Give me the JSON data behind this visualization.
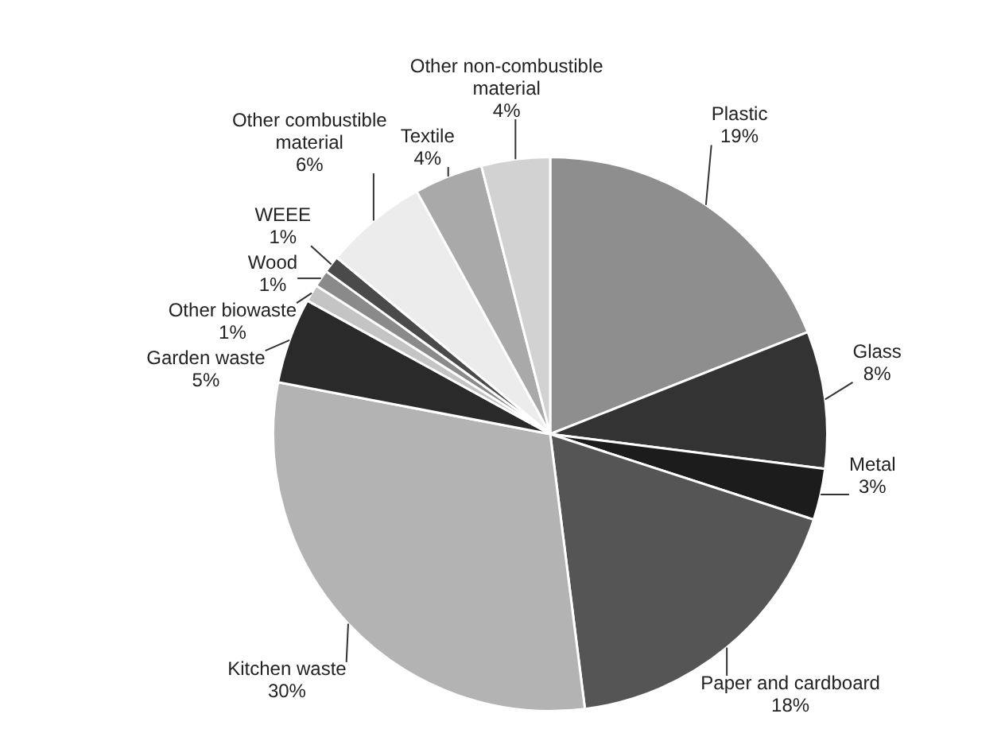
{
  "chart_data": {
    "type": "pie",
    "categories": [
      "Plastic",
      "Glass",
      "Metal",
      "Paper and cardboard",
      "Kitchen waste",
      "Garden waste",
      "Other biowaste",
      "Wood",
      "WEEE",
      "Other combustible material",
      "Textile",
      "Other non-combustible material"
    ],
    "values": [
      19,
      8,
      3,
      18,
      30,
      5,
      1,
      1,
      1,
      6,
      4,
      4
    ],
    "value_labels": [
      "19%",
      "8%",
      "3%",
      "18%",
      "30%",
      "5%",
      "1%",
      "1%",
      "1%",
      "6%",
      "4%",
      "4%"
    ],
    "colors": [
      "#8e8e8e",
      "#333333",
      "#1c1c1c",
      "#555555",
      "#b3b3b3",
      "#2a2a2a",
      "#c4c4c4",
      "#8a8a8a",
      "#4a4a4a",
      "#ececec",
      "#a9a9a9",
      "#d2d2d2"
    ],
    "legend": false
  }
}
